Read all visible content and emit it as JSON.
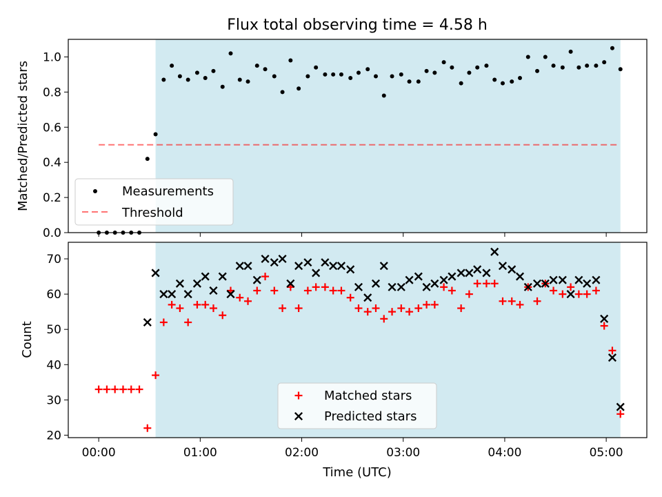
{
  "title": "Flux total observing time = 4.58 h",
  "colors": {
    "shade": "#add8e6",
    "threshold": "#ff0000",
    "matched": "#ff0000",
    "predicted": "#000000",
    "measurement": "#000000"
  },
  "chart_data": [
    {
      "type": "scatter",
      "ylabel": "Matched/Predicted stars",
      "ylim": [
        0.0,
        1.1
      ],
      "yticks": [
        0.0,
        0.2,
        0.4,
        0.6,
        0.8,
        1.0
      ],
      "ytick_labels": [
        "0.0",
        "0.2",
        "0.4",
        "0.6",
        "0.8",
        "1.0"
      ],
      "xlim": [
        -0.3,
        5.4
      ],
      "xticks": [
        0,
        1,
        2,
        3,
        4,
        5
      ],
      "shaded_span": [
        0.56,
        5.14
      ],
      "threshold": {
        "y": 0.5,
        "x": [
          0.0,
          5.13
        ]
      },
      "legend_position": "lower-left",
      "legend": {
        "measurements": "Measurements",
        "threshold": "Threshold"
      },
      "series": [
        {
          "name": "Measurements",
          "points": [
            [
              0.0,
              0.0
            ],
            [
              0.08,
              0.0
            ],
            [
              0.16,
              0.0
            ],
            [
              0.24,
              0.0
            ],
            [
              0.32,
              0.0
            ],
            [
              0.4,
              0.0
            ],
            [
              0.48,
              0.42
            ],
            [
              0.56,
              0.56
            ],
            [
              0.64,
              0.87
            ],
            [
              0.72,
              0.95
            ],
            [
              0.8,
              0.89
            ],
            [
              0.88,
              0.87
            ],
            [
              0.97,
              0.91
            ],
            [
              1.05,
              0.88
            ],
            [
              1.13,
              0.92
            ],
            [
              1.22,
              0.83
            ],
            [
              1.3,
              1.02
            ],
            [
              1.39,
              0.87
            ],
            [
              1.47,
              0.86
            ],
            [
              1.56,
              0.95
            ],
            [
              1.64,
              0.93
            ],
            [
              1.73,
              0.89
            ],
            [
              1.81,
              0.8
            ],
            [
              1.89,
              0.98
            ],
            [
              1.97,
              0.82
            ],
            [
              2.06,
              0.89
            ],
            [
              2.14,
              0.94
            ],
            [
              2.23,
              0.9
            ],
            [
              2.31,
              0.9
            ],
            [
              2.39,
              0.9
            ],
            [
              2.48,
              0.88
            ],
            [
              2.56,
              0.91
            ],
            [
              2.65,
              0.93
            ],
            [
              2.73,
              0.89
            ],
            [
              2.81,
              0.78
            ],
            [
              2.89,
              0.89
            ],
            [
              2.98,
              0.9
            ],
            [
              3.06,
              0.86
            ],
            [
              3.15,
              0.86
            ],
            [
              3.23,
              0.92
            ],
            [
              3.31,
              0.91
            ],
            [
              3.4,
              0.97
            ],
            [
              3.48,
              0.94
            ],
            [
              3.57,
              0.85
            ],
            [
              3.65,
              0.91
            ],
            [
              3.73,
              0.94
            ],
            [
              3.82,
              0.95
            ],
            [
              3.9,
              0.87
            ],
            [
              3.98,
              0.85
            ],
            [
              4.07,
              0.86
            ],
            [
              4.15,
              0.88
            ],
            [
              4.23,
              1.0
            ],
            [
              4.32,
              0.92
            ],
            [
              4.4,
              1.0
            ],
            [
              4.48,
              0.95
            ],
            [
              4.57,
              0.94
            ],
            [
              4.65,
              1.03
            ],
            [
              4.73,
              0.94
            ],
            [
              4.81,
              0.95
            ],
            [
              4.9,
              0.95
            ],
            [
              4.98,
              0.97
            ],
            [
              5.06,
              1.05
            ],
            [
              5.14,
              0.93
            ]
          ]
        }
      ]
    },
    {
      "type": "scatter",
      "xlabel": "Time (UTC)",
      "ylabel": "Count",
      "ylim": [
        19.3,
        74.7
      ],
      "yticks": [
        20,
        30,
        40,
        50,
        60,
        70
      ],
      "ytick_labels": [
        "20",
        "30",
        "40",
        "50",
        "60",
        "70"
      ],
      "xlim": [
        -0.3,
        5.4
      ],
      "xticks": [
        0,
        1,
        2,
        3,
        4,
        5
      ],
      "xtick_labels": [
        "00:00",
        "01:00",
        "02:00",
        "03:00",
        "04:00",
        "05:00"
      ],
      "shaded_span": [
        0.56,
        5.14
      ],
      "legend_position": "lower-center",
      "series": [
        {
          "name": "Matched stars",
          "marker": "plus",
          "points": [
            [
              0.0,
              33
            ],
            [
              0.08,
              33
            ],
            [
              0.16,
              33
            ],
            [
              0.24,
              33
            ],
            [
              0.32,
              33
            ],
            [
              0.4,
              33
            ],
            [
              0.48,
              22
            ],
            [
              0.56,
              37
            ],
            [
              0.64,
              52
            ],
            [
              0.72,
              57
            ],
            [
              0.8,
              56
            ],
            [
              0.88,
              52
            ],
            [
              0.97,
              57
            ],
            [
              1.05,
              57
            ],
            [
              1.13,
              56
            ],
            [
              1.22,
              54
            ],
            [
              1.3,
              61
            ],
            [
              1.39,
              59
            ],
            [
              1.47,
              58
            ],
            [
              1.56,
              61
            ],
            [
              1.64,
              65
            ],
            [
              1.73,
              61
            ],
            [
              1.81,
              56
            ],
            [
              1.89,
              62
            ],
            [
              1.97,
              56
            ],
            [
              2.06,
              61
            ],
            [
              2.14,
              62
            ],
            [
              2.23,
              62
            ],
            [
              2.31,
              61
            ],
            [
              2.39,
              61
            ],
            [
              2.48,
              59
            ],
            [
              2.56,
              56
            ],
            [
              2.65,
              55
            ],
            [
              2.73,
              56
            ],
            [
              2.81,
              53
            ],
            [
              2.89,
              55
            ],
            [
              2.98,
              56
            ],
            [
              3.06,
              55
            ],
            [
              3.15,
              56
            ],
            [
              3.23,
              57
            ],
            [
              3.31,
              57
            ],
            [
              3.4,
              62
            ],
            [
              3.48,
              61
            ],
            [
              3.57,
              56
            ],
            [
              3.65,
              60
            ],
            [
              3.73,
              63
            ],
            [
              3.82,
              63
            ],
            [
              3.9,
              63
            ],
            [
              3.98,
              58
            ],
            [
              4.07,
              58
            ],
            [
              4.15,
              57
            ],
            [
              4.23,
              62
            ],
            [
              4.32,
              58
            ],
            [
              4.4,
              63
            ],
            [
              4.48,
              61
            ],
            [
              4.57,
              60
            ],
            [
              4.65,
              62
            ],
            [
              4.73,
              60
            ],
            [
              4.81,
              60
            ],
            [
              4.9,
              61
            ],
            [
              4.98,
              51
            ],
            [
              5.06,
              44
            ],
            [
              5.14,
              26
            ]
          ]
        },
        {
          "name": "Predicted stars",
          "marker": "x",
          "points": [
            [
              0.48,
              52
            ],
            [
              0.56,
              66
            ],
            [
              0.64,
              60
            ],
            [
              0.72,
              60
            ],
            [
              0.8,
              63
            ],
            [
              0.88,
              60
            ],
            [
              0.97,
              63
            ],
            [
              1.05,
              65
            ],
            [
              1.13,
              61
            ],
            [
              1.22,
              65
            ],
            [
              1.3,
              60
            ],
            [
              1.39,
              68
            ],
            [
              1.47,
              68
            ],
            [
              1.56,
              64
            ],
            [
              1.64,
              70
            ],
            [
              1.73,
              69
            ],
            [
              1.81,
              70
            ],
            [
              1.89,
              63
            ],
            [
              1.97,
              68
            ],
            [
              2.06,
              69
            ],
            [
              2.14,
              66
            ],
            [
              2.23,
              69
            ],
            [
              2.31,
              68
            ],
            [
              2.39,
              68
            ],
            [
              2.48,
              67
            ],
            [
              2.56,
              62
            ],
            [
              2.65,
              59
            ],
            [
              2.73,
              63
            ],
            [
              2.81,
              68
            ],
            [
              2.89,
              62
            ],
            [
              2.98,
              62
            ],
            [
              3.06,
              64
            ],
            [
              3.15,
              65
            ],
            [
              3.23,
              62
            ],
            [
              3.31,
              63
            ],
            [
              3.4,
              64
            ],
            [
              3.48,
              65
            ],
            [
              3.57,
              66
            ],
            [
              3.65,
              66
            ],
            [
              3.73,
              67
            ],
            [
              3.82,
              66
            ],
            [
              3.9,
              72
            ],
            [
              3.98,
              68
            ],
            [
              4.07,
              67
            ],
            [
              4.15,
              65
            ],
            [
              4.23,
              62
            ],
            [
              4.32,
              63
            ],
            [
              4.4,
              63
            ],
            [
              4.48,
              64
            ],
            [
              4.57,
              64
            ],
            [
              4.65,
              60
            ],
            [
              4.73,
              64
            ],
            [
              4.81,
              63
            ],
            [
              4.9,
              64
            ],
            [
              4.98,
              53
            ],
            [
              5.06,
              42
            ],
            [
              5.14,
              28
            ]
          ]
        }
      ]
    }
  ]
}
